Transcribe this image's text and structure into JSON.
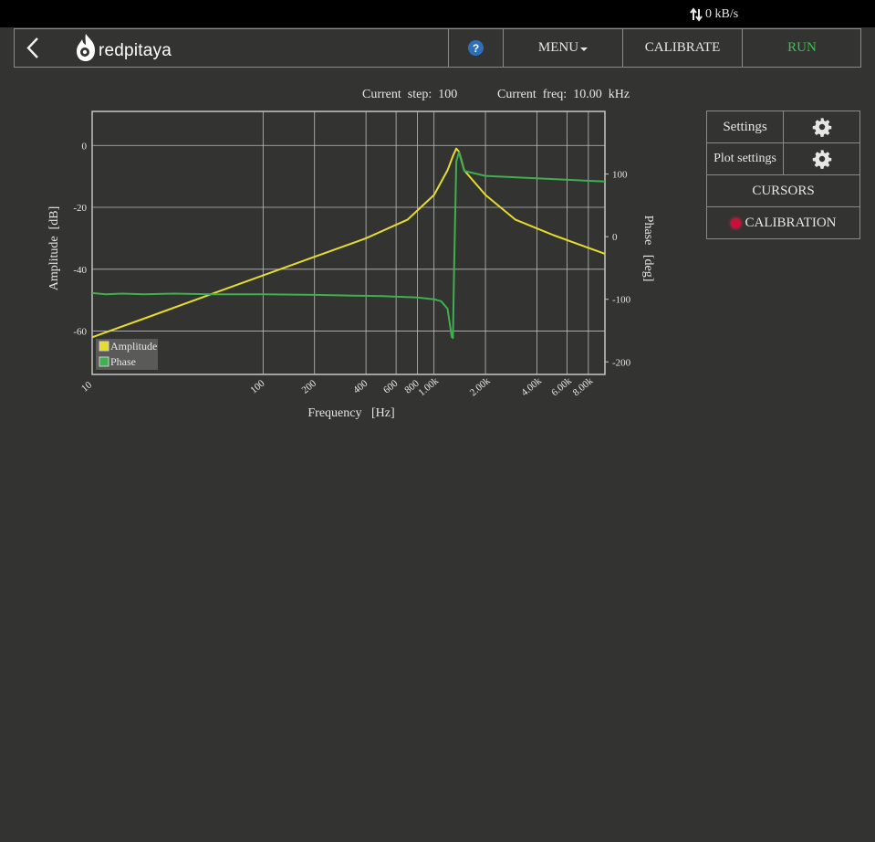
{
  "status": {
    "transfer_rate": "0 kB/s",
    "transfer_icon": "up-down-arrows-icon"
  },
  "navbar": {
    "back_icon": "chevron-left-icon",
    "logo_text": "redpitaya",
    "help_label": "?",
    "menu_label": "MENU",
    "calibrate_label": "CALIBRATE",
    "run_label": "RUN",
    "run_color": "#3fbf57"
  },
  "info": {
    "step_label": "Current  step:",
    "step_value": "100",
    "freq_label": "Current  freq:",
    "freq_value": "10.00  kHz"
  },
  "side_panel": {
    "settings_label": "Settings",
    "plot_settings_label": "Plot settings",
    "cursors_label": "CURSORS",
    "calibration_label": "CALIBRATION",
    "gear_icon": "gear-icon"
  },
  "chart_data": {
    "type": "line",
    "xlabel": "Frequency   [Hz]",
    "ylabel": "Amplitude  [dB]",
    "y2label": "Phase   [deg]",
    "xscale": "log",
    "xlim": [
      10,
      10000
    ],
    "ylim": [
      -74,
      11
    ],
    "y2lim": [
      -220,
      200
    ],
    "x_ticks": [
      10,
      100,
      200,
      400,
      600,
      800,
      1000,
      2000,
      4000,
      6000,
      8000
    ],
    "x_tick_labels": [
      "10",
      "100",
      "200",
      "400",
      "600",
      "800",
      "1.00k",
      "2.00k",
      "4.00k",
      "6.00k",
      "8.00k"
    ],
    "y_ticks": [
      0,
      -20,
      -40,
      -60
    ],
    "y_tick_labels": [
      "0",
      "-20",
      "-40",
      "-60"
    ],
    "y2_ticks": [
      100,
      0,
      -100,
      -200
    ],
    "y2_tick_labels": [
      "100",
      "0",
      "-100",
      "-200"
    ],
    "grid": true,
    "legend_position": "bottom-left",
    "series": [
      {
        "name": "Amplitude",
        "color": "#e6dc2c",
        "axis": "left",
        "x": [
          10,
          20,
          50,
          100,
          200,
          400,
          700,
          1000,
          1200,
          1300,
          1350,
          1400,
          1450,
          1500,
          2000,
          3000,
          5000,
          10000
        ],
        "y": [
          -62,
          -56,
          -48,
          -42,
          -36,
          -30,
          -24,
          -16,
          -8,
          -3,
          -1,
          -2,
          -5,
          -8,
          -16,
          -24,
          -29,
          -35
        ]
      },
      {
        "name": "Phase",
        "color": "#3faf4f",
        "axis": "right",
        "x": [
          10,
          12,
          15,
          20,
          30,
          50,
          100,
          200,
          500,
          800,
          1000,
          1100,
          1200,
          1270,
          1290,
          1310,
          1350,
          1400,
          1500,
          2000,
          5000,
          10000
        ],
        "y": [
          -90,
          -92,
          -91,
          -92,
          -91,
          -92,
          -92,
          -93,
          -95,
          -97,
          -100,
          -103,
          -115,
          -160,
          -162,
          -60,
          120,
          135,
          105,
          97,
          92,
          88
        ]
      }
    ]
  }
}
